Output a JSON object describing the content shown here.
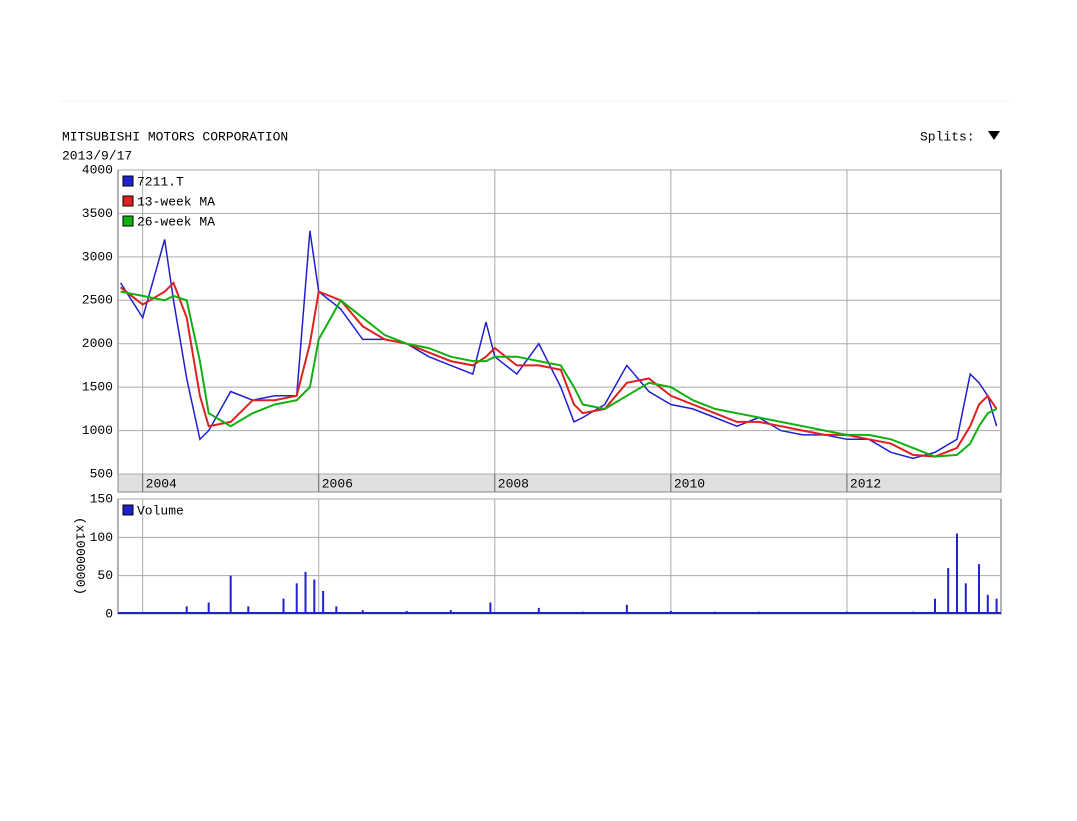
{
  "chart_data": [
    {
      "type": "line",
      "title": "MITSUBISHI MOTORS CORPORATION",
      "subtitle": "2013/9/17",
      "splits_label": "Splits:",
      "x": [
        2003.75,
        2004.0,
        2004.25,
        2004.35,
        2004.5,
        2004.65,
        2004.75,
        2005.0,
        2005.25,
        2005.5,
        2005.75,
        2005.9,
        2006.0,
        2006.25,
        2006.5,
        2006.75,
        2007.0,
        2007.25,
        2007.5,
        2007.75,
        2007.9,
        2008.0,
        2008.25,
        2008.5,
        2008.75,
        2008.9,
        2009.0,
        2009.25,
        2009.5,
        2009.75,
        2010.0,
        2010.25,
        2010.5,
        2010.75,
        2011.0,
        2011.25,
        2011.5,
        2011.75,
        2012.0,
        2012.25,
        2012.5,
        2012.75,
        2013.0,
        2013.25,
        2013.4,
        2013.5,
        2013.6,
        2013.7
      ],
      "series": [
        {
          "name": "7211.T",
          "color": "#2020d0",
          "values": [
            2700,
            2300,
            3200,
            2500,
            1600,
            900,
            1000,
            1450,
            1350,
            1400,
            1400,
            3300,
            2600,
            2400,
            2050,
            2050,
            2000,
            1850,
            1750,
            1650,
            2250,
            1850,
            1650,
            2000,
            1500,
            1100,
            1150,
            1300,
            1750,
            1450,
            1300,
            1250,
            1150,
            1050,
            1150,
            1000,
            950,
            950,
            900,
            900,
            750,
            680,
            750,
            900,
            1650,
            1550,
            1400,
            1050
          ]
        },
        {
          "name": "13-week MA",
          "color": "#e02020",
          "values": [
            2650,
            2450,
            2600,
            2700,
            2300,
            1400,
            1050,
            1100,
            1350,
            1350,
            1400,
            2000,
            2600,
            2500,
            2200,
            2050,
            2000,
            1900,
            1800,
            1750,
            1850,
            1950,
            1750,
            1750,
            1700,
            1300,
            1200,
            1250,
            1550,
            1600,
            1400,
            1300,
            1200,
            1100,
            1100,
            1050,
            1000,
            950,
            950,
            900,
            850,
            720,
            700,
            800,
            1050,
            1300,
            1400,
            1250
          ]
        },
        {
          "name": "26-week MA",
          "color": "#10b010",
          "values": [
            2600,
            2550,
            2500,
            2550,
            2500,
            1800,
            1200,
            1050,
            1200,
            1300,
            1350,
            1500,
            2050,
            2500,
            2300,
            2100,
            2000,
            1950,
            1850,
            1800,
            1800,
            1850,
            1850,
            1800,
            1750,
            1500,
            1300,
            1250,
            1400,
            1550,
            1500,
            1350,
            1250,
            1200,
            1150,
            1100,
            1050,
            1000,
            950,
            950,
            900,
            800,
            700,
            720,
            850,
            1050,
            1200,
            1250
          ]
        }
      ],
      "xlim": [
        2003.72,
        2013.75
      ],
      "xticks": [
        2004,
        2006,
        2008,
        2010,
        2012
      ],
      "ylim": [
        500,
        4000
      ],
      "yticks": [
        500,
        1000,
        1500,
        2000,
        2500,
        3000,
        3500,
        4000
      ],
      "grid": true
    },
    {
      "type": "bar",
      "y_label": "(x1000000)",
      "x": [
        2004.5,
        2004.75,
        2005.0,
        2005.2,
        2005.6,
        2005.75,
        2005.85,
        2005.95,
        2006.05,
        2006.2,
        2006.5,
        2007.0,
        2007.5,
        2007.95,
        2008.5,
        2009.0,
        2009.5,
        2010.0,
        2010.5,
        2011.0,
        2011.5,
        2012.0,
        2012.5,
        2012.75,
        2013.0,
        2013.15,
        2013.25,
        2013.35,
        2013.5,
        2013.6,
        2013.7
      ],
      "series": [
        {
          "name": "Volume",
          "color": "#2020d0",
          "values": [
            10,
            15,
            50,
            10,
            20,
            40,
            55,
            45,
            30,
            10,
            5,
            4,
            5,
            15,
            8,
            3,
            12,
            4,
            3,
            3,
            2,
            3,
            2,
            3,
            20,
            60,
            105,
            40,
            65,
            25,
            20
          ]
        }
      ],
      "xlim": [
        2003.72,
        2013.75
      ],
      "ylim": [
        0,
        150
      ],
      "yticks": [
        0,
        50,
        100,
        150
      ],
      "grid": true
    }
  ]
}
